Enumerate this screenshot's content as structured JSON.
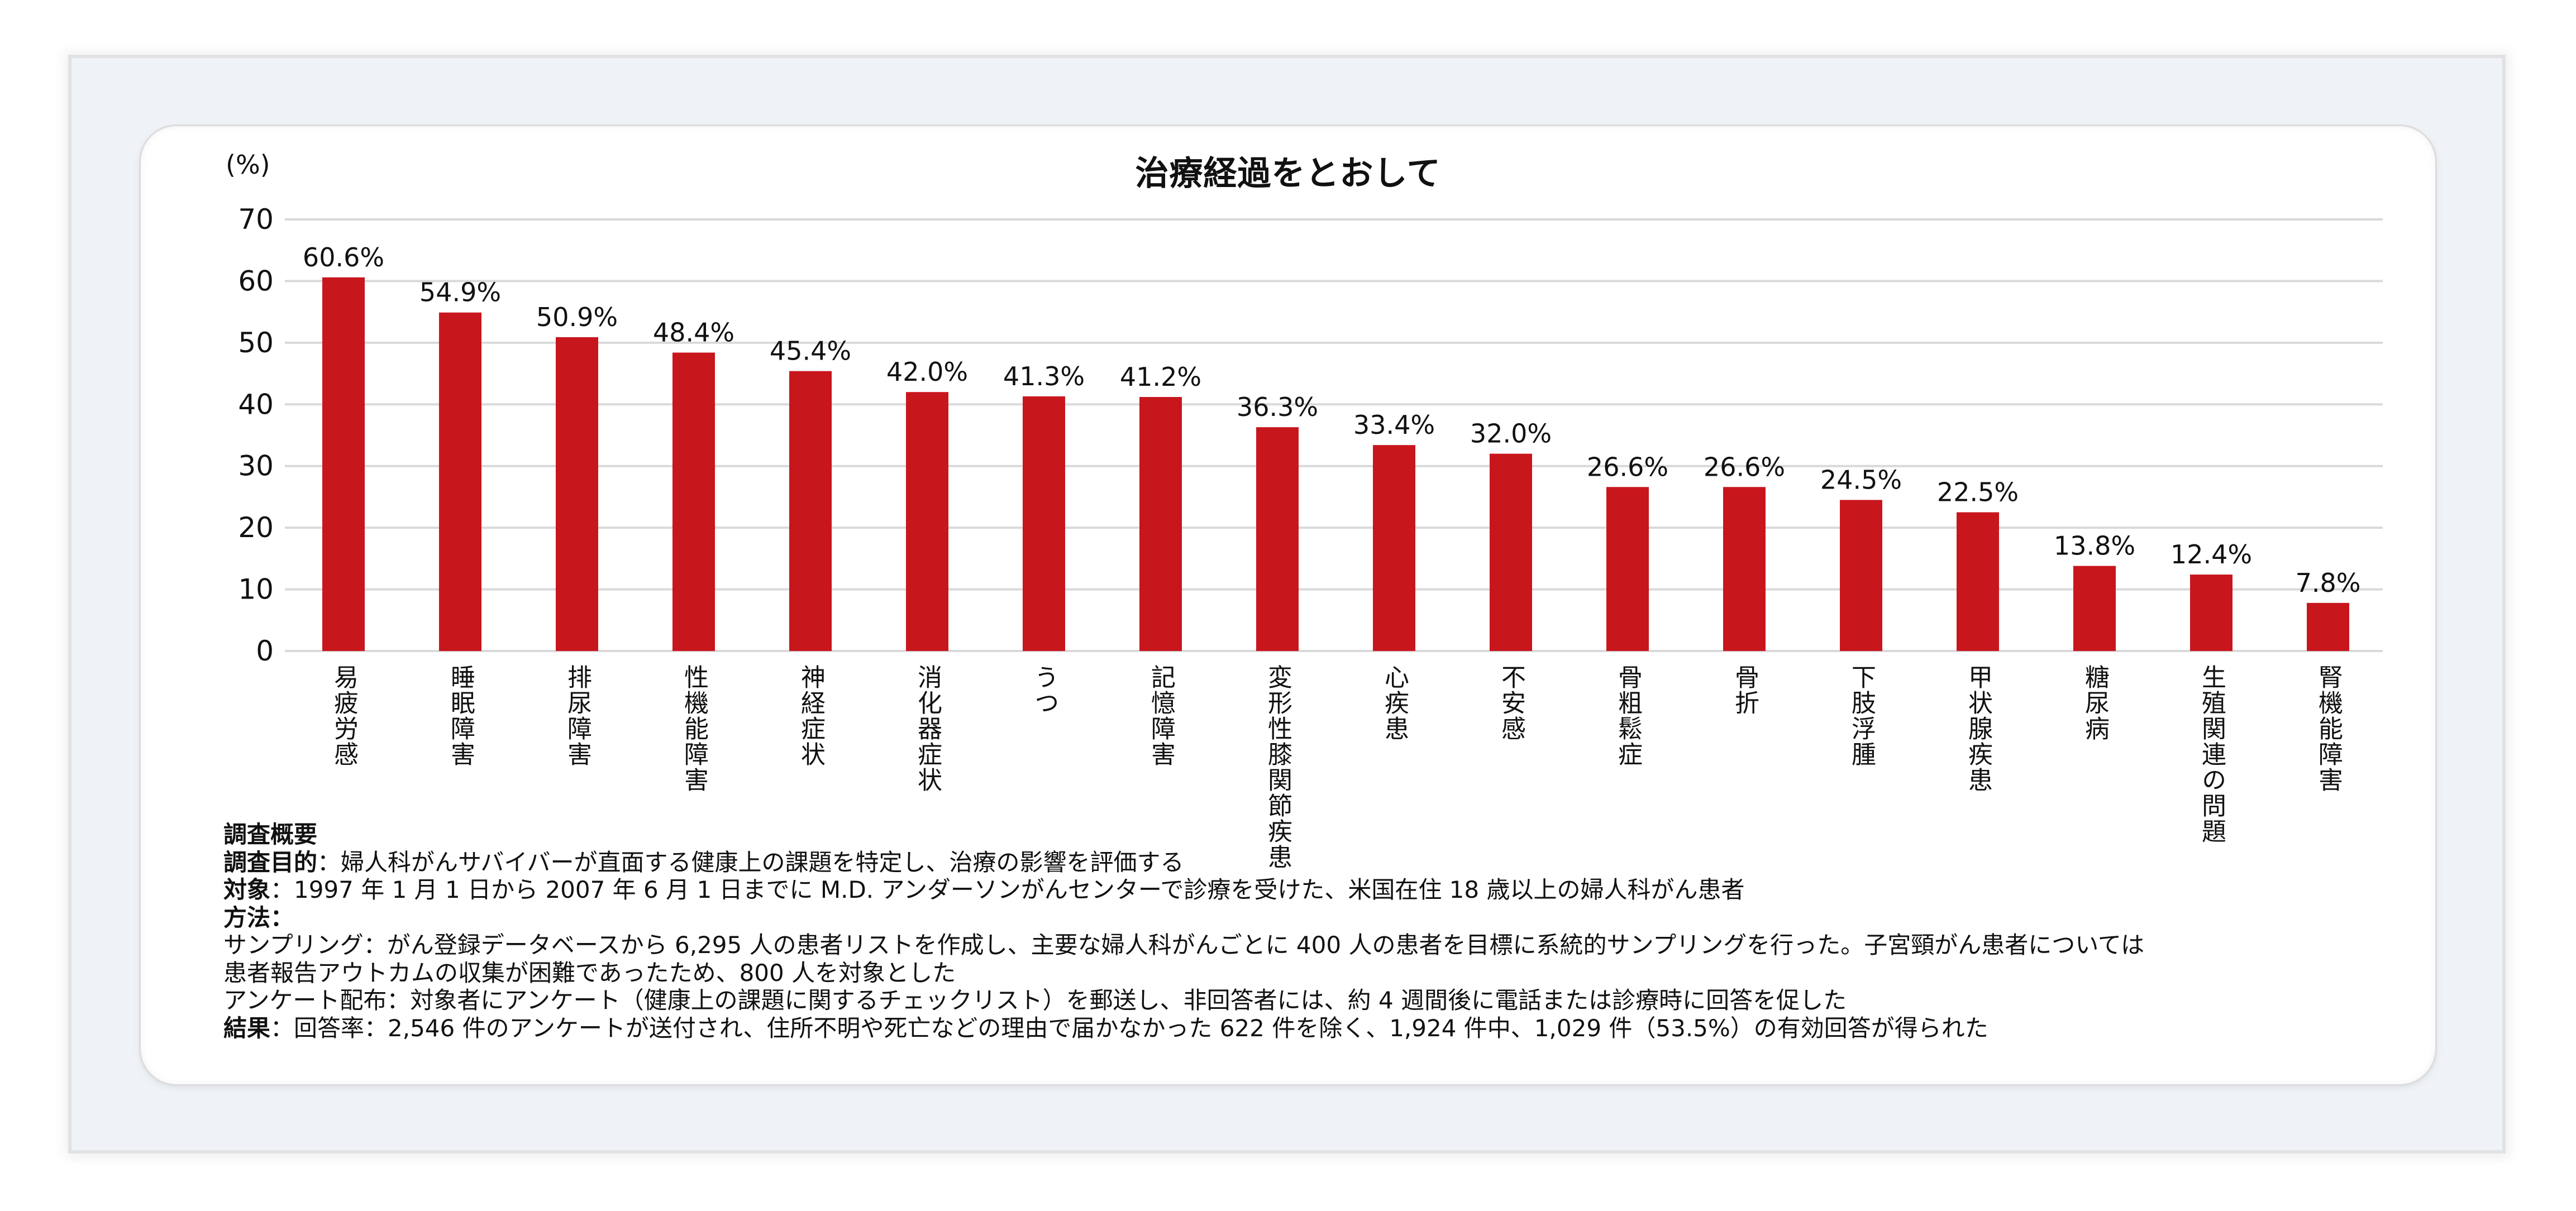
{
  "chart_data": {
    "type": "bar",
    "title": "治療経過をとおして",
    "ylabel": "(%)",
    "xlabel": "",
    "ylim": [
      0,
      70
    ],
    "yticks": [
      0,
      10,
      20,
      30,
      40,
      50,
      60,
      70
    ],
    "grid": true,
    "bar_color": "#c8161d",
    "grid_color": "#d9d9d9",
    "categories": [
      [
        "易疲労感"
      ],
      [
        "睡眠障害"
      ],
      [
        "排尿障害"
      ],
      [
        "性機能障害"
      ],
      [
        "神経症状"
      ],
      [
        "消化器症状"
      ],
      [
        "うつ"
      ],
      [
        "記憶障害"
      ],
      [
        "変形性",
        "膝関節疾患"
      ],
      [
        "心疾患"
      ],
      [
        "不安感"
      ],
      [
        "骨粗鬆症"
      ],
      [
        "骨折"
      ],
      [
        "下肢浮腫"
      ],
      [
        "甲状腺疾患"
      ],
      [
        "糖尿病"
      ],
      [
        "生殖関連の",
        "問題"
      ],
      [
        "腎機能障害"
      ]
    ],
    "values": [
      60.6,
      54.9,
      50.9,
      48.4,
      45.4,
      42.0,
      41.3,
      41.2,
      36.3,
      33.4,
      32.0,
      26.6,
      26.6,
      24.5,
      22.5,
      13.8,
      12.4,
      7.8
    ],
    "value_labels": [
      "60.6%",
      "54.9%",
      "50.9%",
      "48.4%",
      "45.4%",
      "42.0%",
      "41.3%",
      "41.2%",
      "36.3%",
      "33.4%",
      "32.0%",
      "26.6%",
      "26.6%",
      "24.5%",
      "22.5%",
      "13.8%",
      "12.4%",
      "7.8%"
    ]
  },
  "footer": {
    "heading": "調査概要",
    "purpose_label": "調査目的",
    "purpose_text": "：婦人科がんサバイバーが直面する健康上の課題を特定し、治療の影響を評価する",
    "subject_label": "対象",
    "subject_text": "：1997 年 1 月 1 日から 2007 年 6 月 1 日までに M.D. アンダーソンがんセンターで診療を受けた、米国在住 18 歳以上の婦人科がん患者",
    "method_label": "方法：",
    "sampling_line1": "サンプリング：がん登録データベースから 6,295 人の患者リストを作成し、主要な婦人科がんごとに 400 人の患者を目標に系統的サンプリングを行った。子宮頸がん患者については",
    "sampling_line2": "患者報告アウトカムの収集が困難であったため、800 人を対象とした",
    "survey_line": "アンケート配布：対象者にアンケート（健康上の課題に関するチェックリスト）を郵送し、非回答者には、約 4 週間後に電話または診療時に回答を促した",
    "result_label": "結果",
    "result_text": "：回答率：2,546 件のアンケートが送付され、住所不明や死亡などの理由で届かなかった 622 件を除く、1,924 件中、1,029 件（53.5%）の有効回答が得られた"
  }
}
